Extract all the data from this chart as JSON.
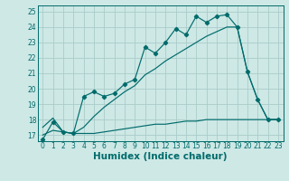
{
  "title": "",
  "xlabel": "Humidex (Indice chaleur)",
  "bg_color": "#cde8e5",
  "grid_color": "#aaccca",
  "line_color": "#006b6b",
  "xlim": [
    -0.5,
    23.5
  ],
  "ylim": [
    16.6,
    25.4
  ],
  "yticks": [
    17,
    18,
    19,
    20,
    21,
    22,
    23,
    24,
    25
  ],
  "xticks": [
    0,
    1,
    2,
    3,
    4,
    5,
    6,
    7,
    8,
    9,
    10,
    11,
    12,
    13,
    14,
    15,
    16,
    17,
    18,
    19,
    20,
    21,
    22,
    23
  ],
  "s1_x": [
    0,
    1,
    2,
    3,
    4,
    5,
    6,
    7,
    8,
    9,
    10,
    11,
    12,
    13,
    14,
    15,
    16,
    17,
    18,
    19,
    20,
    21,
    22,
    23
  ],
  "s1_y": [
    16.7,
    17.85,
    17.2,
    17.1,
    19.5,
    19.8,
    19.5,
    19.7,
    20.3,
    20.6,
    22.7,
    22.3,
    23.0,
    23.9,
    23.5,
    24.7,
    24.3,
    24.7,
    24.8,
    24.0,
    21.1,
    19.3,
    18.0,
    18.0
  ],
  "s2_x": [
    0,
    1,
    2,
    3,
    4,
    5,
    6,
    7,
    8,
    9,
    10,
    11,
    12,
    13,
    14,
    15,
    16,
    17,
    18,
    19,
    20,
    21,
    22,
    23
  ],
  "s2_y": [
    17.5,
    18.1,
    17.2,
    17.1,
    17.5,
    18.2,
    18.8,
    19.3,
    19.8,
    20.2,
    20.9,
    21.3,
    21.8,
    22.2,
    22.6,
    23.0,
    23.4,
    23.7,
    24.0,
    24.0,
    21.1,
    19.3,
    18.0,
    18.0
  ],
  "s3_x": [
    0,
    1,
    2,
    3,
    4,
    5,
    6,
    7,
    8,
    9,
    10,
    11,
    12,
    13,
    14,
    15,
    16,
    17,
    18,
    19,
    20,
    21,
    22,
    23
  ],
  "s3_y": [
    17.0,
    17.3,
    17.2,
    17.1,
    17.1,
    17.1,
    17.2,
    17.3,
    17.4,
    17.5,
    17.6,
    17.7,
    17.7,
    17.8,
    17.9,
    17.9,
    18.0,
    18.0,
    18.0,
    18.0,
    18.0,
    18.0,
    18.0,
    18.0
  ],
  "tick_fontsize": 5.5,
  "xlabel_fontsize": 7.5,
  "markersize": 2.2,
  "linewidth": 0.85
}
